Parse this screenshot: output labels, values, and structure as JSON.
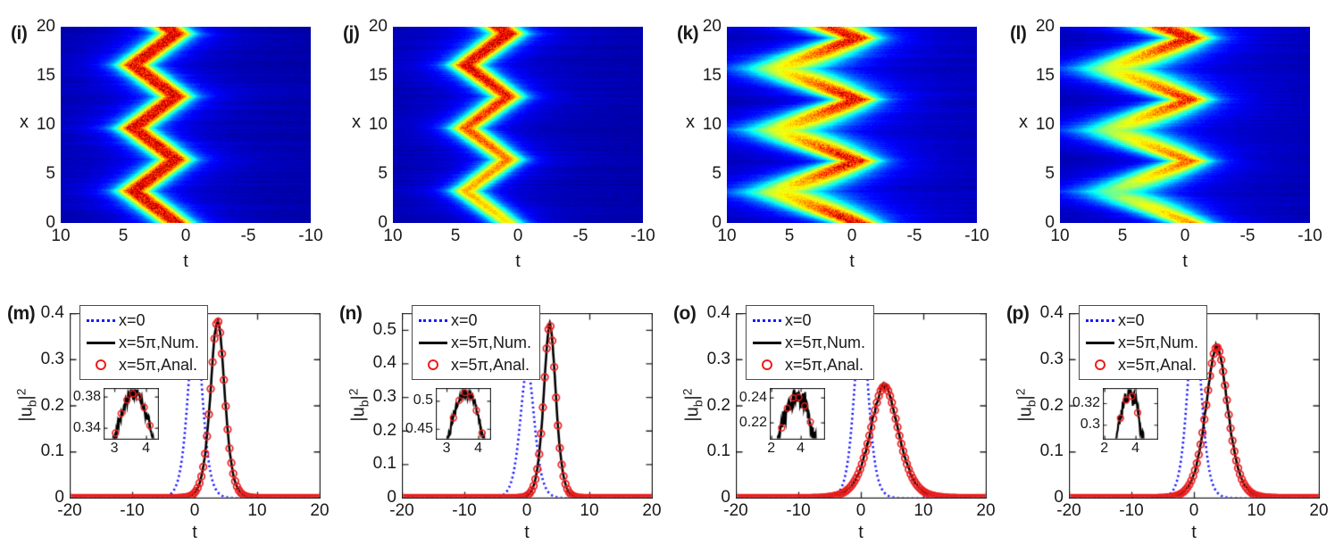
{
  "page": {
    "background": "#ffffff",
    "text_color": "#1a1a1a"
  },
  "chart_data": {
    "heatmaps": [
      {
        "panel_label": "(i)",
        "type": "heatmap",
        "xlabel": "t",
        "ylabel": "x",
        "x_axis": {
          "min": 10,
          "max": -10,
          "ticks": [
            10,
            5,
            0,
            -5,
            -10
          ],
          "reversed": true
        },
        "y_axis": {
          "min": 0,
          "max": 20,
          "ticks": [
            0,
            5,
            10,
            15,
            20
          ]
        },
        "colormap": "jet",
        "trajectory": {
          "wave": "triangle",
          "t_min": 0.8,
          "t_max": 4.2,
          "period_x": 6.45,
          "x_at_t_min": 6.45
        },
        "pulse": {
          "width_at_min": 1.15,
          "width_at_max": 1.15,
          "amp_at_min_vertex": 1.0,
          "amp_at_max_vertex": 1.0,
          "amp_bottom": 1.0,
          "amp_top": 1.0
        },
        "speckle": 0.22
      },
      {
        "panel_label": "(j)",
        "type": "heatmap",
        "xlabel": "t",
        "ylabel": "x",
        "x_axis": {
          "min": 10,
          "max": -10,
          "ticks": [
            10,
            5,
            0,
            -5,
            -10
          ],
          "reversed": true
        },
        "y_axis": {
          "min": 0,
          "max": 20,
          "ticks": [
            0,
            5,
            10,
            15,
            20
          ]
        },
        "colormap": "jet",
        "trajectory": {
          "wave": "triangle",
          "t_min": 0.8,
          "t_max": 4.2,
          "period_x": 6.45,
          "x_at_t_min": 6.45
        },
        "pulse": {
          "width_at_min": 1.15,
          "width_at_max": 1.15,
          "amp_at_min_vertex": 1.0,
          "amp_at_max_vertex": 1.0,
          "amp_bottom": 0.6,
          "amp_top": 1.02
        },
        "speckle": 0.22
      },
      {
        "panel_label": "(k)",
        "type": "heatmap",
        "xlabel": "t",
        "ylabel": "x",
        "x_axis": {
          "min": 10,
          "max": -10,
          "ticks": [
            10,
            5,
            0,
            -5,
            -10
          ],
          "reversed": true
        },
        "y_axis": {
          "min": 0,
          "max": 20,
          "ticks": [
            0,
            5,
            10,
            15,
            20
          ]
        },
        "colormap": "jet",
        "trajectory": {
          "wave": "triangle",
          "t_min": -0.4,
          "t_max": 5.6,
          "period_x": 6.3,
          "x_at_t_min": 0
        },
        "pulse": {
          "width_at_min": 1.5,
          "width_at_max": 3.1,
          "amp_at_min_vertex": 0.98,
          "amp_at_max_vertex": 0.55,
          "amp_bottom": 1.0,
          "amp_top": 1.0
        },
        "speckle": 0.25
      },
      {
        "panel_label": "(l)",
        "type": "heatmap",
        "xlabel": "t",
        "ylabel": "x",
        "x_axis": {
          "min": 10,
          "max": -10,
          "ticks": [
            10,
            5,
            0,
            -5,
            -10
          ],
          "reversed": true
        },
        "y_axis": {
          "min": 0,
          "max": 20,
          "ticks": [
            0,
            5,
            10,
            15,
            20
          ]
        },
        "colormap": "jet",
        "trajectory": {
          "wave": "triangle",
          "t_min": -0.4,
          "t_max": 5.6,
          "period_x": 6.3,
          "x_at_t_min": 0
        },
        "pulse": {
          "width_at_min": 1.5,
          "width_at_max": 3.1,
          "amp_at_min_vertex": 0.98,
          "amp_at_max_vertex": 0.55,
          "amp_bottom": 0.72,
          "amp_top": 1.03
        },
        "speckle": 0.25
      }
    ],
    "line_plots": [
      {
        "panel_label": "(m)",
        "type": "line",
        "xlabel": "t",
        "ylabel": "|u_b|^2",
        "ylabel_parts": {
          "base": "|u",
          "sub": "b",
          "close": "|",
          "sup": "2"
        },
        "x_axis": {
          "min": -20,
          "max": 20,
          "ticks": [
            -20,
            -10,
            0,
            10,
            20
          ]
        },
        "y_axis": {
          "min": 0,
          "max": 0.4,
          "ticks": [
            0,
            0.1,
            0.2,
            0.3,
            0.4
          ]
        },
        "series": [
          {
            "name": "x=0",
            "style": "dotted",
            "color": "#1a1aff",
            "model": "sech2",
            "peak_t": 0,
            "peak": 0.385,
            "width": 1.52
          },
          {
            "name": "x=5π,Num.",
            "style": "solid",
            "color": "#000000",
            "model": "sech2",
            "peak_t": 3.6,
            "peak": 0.384,
            "width": 1.52,
            "noise": 0.004
          },
          {
            "name": "x=5π,Anal.",
            "style": "circles",
            "color": "#ed1c1c",
            "model": "sech2",
            "peak_t": 3.6,
            "peak": 0.384,
            "width": 1.52,
            "marker_step": 0.3
          }
        ],
        "inset": {
          "x_min": 2.66,
          "x_max": 4.38,
          "x_ticks": [
            3,
            4
          ],
          "y_min": 0.326,
          "y_max": 0.391,
          "y_ticks": [
            0.34,
            0.38
          ]
        }
      },
      {
        "panel_label": "(n)",
        "type": "line",
        "xlabel": "t",
        "ylabel": "|u_b|^2",
        "ylabel_parts": {
          "base": "|u",
          "sub": "b",
          "close": "|",
          "sup": "2"
        },
        "x_axis": {
          "min": -20,
          "max": 20,
          "ticks": [
            -20,
            -10,
            0,
            10,
            20
          ]
        },
        "y_axis": {
          "min": 0,
          "max": 0.55,
          "ticks": [
            0,
            0.1,
            0.2,
            0.3,
            0.4,
            0.5
          ]
        },
        "series": [
          {
            "name": "x=0",
            "style": "dotted",
            "color": "#1a1aff",
            "model": "sech2",
            "peak_t": 0,
            "peak": 0.385,
            "width": 1.52
          },
          {
            "name": "x=5π,Num.",
            "style": "solid",
            "color": "#000000",
            "model": "sech2",
            "peak_t": 3.6,
            "peak": 0.515,
            "width": 1.3,
            "noise": 0.005
          },
          {
            "name": "x=5π,Anal.",
            "style": "circles",
            "color": "#ed1c1c",
            "model": "sech2",
            "peak_t": 3.6,
            "peak": 0.515,
            "width": 1.3,
            "marker_step": 0.3
          }
        ],
        "inset": {
          "x_min": 2.66,
          "x_max": 4.38,
          "x_ticks": [
            3,
            4
          ],
          "y_min": 0.432,
          "y_max": 0.523,
          "y_ticks": [
            0.45,
            0.5
          ]
        }
      },
      {
        "panel_label": "(o)",
        "type": "line",
        "xlabel": "t",
        "ylabel": "|u_b|^2",
        "ylabel_parts": {
          "base": "|u",
          "sub": "b",
          "close": "|",
          "sup": "2"
        },
        "x_axis": {
          "min": -20,
          "max": 20,
          "ticks": [
            -20,
            -10,
            0,
            10,
            20
          ]
        },
        "y_axis": {
          "min": 0,
          "max": 0.4,
          "ticks": [
            0,
            0.1,
            0.2,
            0.3,
            0.4
          ]
        },
        "series": [
          {
            "name": "x=0",
            "style": "dotted",
            "color": "#1a1aff",
            "model": "sech2",
            "peak_t": 0,
            "peak": 0.385,
            "width": 1.52
          },
          {
            "name": "x=5π,Num.",
            "style": "solid",
            "color": "#000000",
            "model": "sech2",
            "peak_t": 3.7,
            "peak": 0.242,
            "width": 3.0,
            "noise": 0.005
          },
          {
            "name": "x=5π,Anal.",
            "style": "circles",
            "color": "#ed1c1c",
            "model": "sech2",
            "peak_t": 3.7,
            "peak": 0.242,
            "width": 3.0,
            "marker_step": 0.3
          }
        ],
        "inset": {
          "x_min": 1.9,
          "x_max": 5.6,
          "x_ticks": [
            2,
            4
          ],
          "y_min": 0.207,
          "y_max": 0.2475,
          "y_ticks": [
            0.22,
            0.24
          ]
        }
      },
      {
        "panel_label": "(p)",
        "type": "line",
        "xlabel": "t",
        "ylabel": "|u_b|^2",
        "ylabel_parts": {
          "base": "|u",
          "sub": "b",
          "close": "|",
          "sup": "2"
        },
        "x_axis": {
          "min": -20,
          "max": 20,
          "ticks": [
            -20,
            -10,
            0,
            10,
            20
          ]
        },
        "y_axis": {
          "min": 0,
          "max": 0.4,
          "ticks": [
            0,
            0.1,
            0.2,
            0.3,
            0.4
          ]
        },
        "series": [
          {
            "name": "x=0",
            "style": "dotted",
            "color": "#1a1aff",
            "model": "sech2",
            "peak_t": 0,
            "peak": 0.385,
            "width": 1.52
          },
          {
            "name": "x=5π,Num.",
            "style": "solid",
            "color": "#000000",
            "model": "sech2",
            "peak_t": 3.6,
            "peak": 0.327,
            "width": 2.35,
            "noise": 0.0045
          },
          {
            "name": "x=5π,Anal.",
            "style": "circles",
            "color": "#ed1c1c",
            "model": "sech2",
            "peak_t": 3.6,
            "peak": 0.327,
            "width": 2.35,
            "marker_step": 0.3
          }
        ],
        "inset": {
          "x_min": 1.9,
          "x_max": 5.4,
          "x_ticks": [
            2,
            4
          ],
          "y_min": 0.287,
          "y_max": 0.334,
          "y_ticks": [
            0.3,
            0.32
          ]
        }
      }
    ]
  }
}
